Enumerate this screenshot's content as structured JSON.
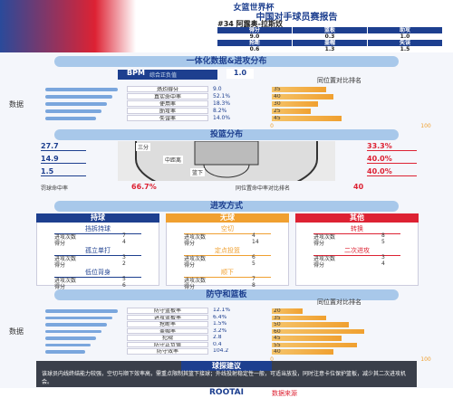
{
  "header": {
    "event": "女篮世界杯",
    "title": "中国对手球员赛报告",
    "player": "#34 阿露奥-拉斯奴",
    "info": [
      "身高：185cm",
      "位置：中锋",
      "时间：23.0分钟"
    ],
    "stats": [
      [
        "得分",
        "篮板",
        "助攻"
      ],
      [
        "9.0",
        "0.3",
        "1.0"
      ],
      [
        "抢断",
        "盖帽",
        "失误"
      ],
      [
        "0.6",
        "1.3",
        "1.5"
      ]
    ]
  },
  "overview": {
    "title": "一体化数据&进攻分布",
    "bpm_label": "BPM",
    "bpm_note": "综合正负值",
    "bpm": "1.0",
    "left_title": "数据",
    "right_title": "同位置对比排名",
    "rows": [
      {
        "label": "场均得分",
        "value": "9.0",
        "rank": 35
      },
      {
        "label": "真实命中率",
        "value": "52.1%",
        "rank": 40
      },
      {
        "label": "使用率",
        "value": "18.3%",
        "rank": 30
      },
      {
        "label": "助攻率",
        "value": "8.2%",
        "rank": 25
      },
      {
        "label": "失误率",
        "value": "14.0%",
        "rank": 45
      }
    ],
    "ticks": [
      0,
      100
    ]
  },
  "shooting": {
    "title": "投篮分布",
    "zones": [
      {
        "name": "三分",
        "freq": "27.7",
        "fg": "33.3%"
      },
      {
        "name": "中距离",
        "freq": "14.9",
        "fg": "40.0%"
      },
      {
        "name": "篮下",
        "freq": "1.5",
        "fg": "40.0%"
      }
    ],
    "summary": [
      {
        "label": "罚球命中率",
        "value": "66.7%"
      },
      {
        "label": "同位置命中率对比排名",
        "value": "40"
      }
    ]
  },
  "offense": {
    "title": "进攻方式",
    "columns": [
      {
        "name": "持球",
        "groups": [
          {
            "name": "挡拆持球",
            "items": [
              [
                "进攻次数",
                "7"
              ],
              [
                "得分",
                "4"
              ]
            ]
          },
          {
            "name": "孤立单打",
            "items": [
              [
                "进攻次数",
                "3"
              ],
              [
                "得分",
                "2"
              ]
            ]
          },
          {
            "name": "低位背身",
            "items": [
              [
                "进攻次数",
                "5"
              ],
              [
                "得分",
                "6"
              ]
            ]
          }
        ]
      },
      {
        "name": "无球",
        "groups": [
          {
            "name": "空切",
            "items": [
              [
                "进攻次数",
                "4"
              ],
              [
                "得分",
                "14"
              ]
            ]
          },
          {
            "name": "定点投篮",
            "items": [
              [
                "进攻次数",
                "6"
              ],
              [
                "得分",
                "5"
              ]
            ]
          },
          {
            "name": "顺下",
            "items": [
              [
                "进攻次数",
                "7"
              ],
              [
                "得分",
                "8"
              ]
            ]
          }
        ]
      },
      {
        "name": "其他",
        "groups": [
          {
            "name": "转换",
            "items": [
              [
                "进攻次数",
                "8"
              ],
              [
                "得分",
                "5"
              ]
            ]
          },
          {
            "name": "二次进攻",
            "items": [
              [
                "进攻次数",
                "3"
              ],
              [
                "得分",
                "4"
              ]
            ]
          }
        ]
      }
    ]
  },
  "defense": {
    "title": "防守和篮板",
    "left_title": "数据",
    "right_title": "同位置对比排名",
    "rows": [
      {
        "label": "防守篮板率",
        "value": "12.1%",
        "rank": 20
      },
      {
        "label": "进攻篮板率",
        "value": "6.4%",
        "rank": 35
      },
      {
        "label": "抢断率",
        "value": "1.5%",
        "rank": 50
      },
      {
        "label": "盖帽率",
        "value": "3.2%",
        "rank": 60
      },
      {
        "label": "犯规",
        "value": "2.8",
        "rank": 45
      },
      {
        "label": "防守正负值",
        "value": "0.4",
        "rank": 55
      },
      {
        "label": "防守效率",
        "value": "104.2",
        "rank": 40
      }
    ],
    "ticks": [
      0,
      100
    ]
  },
  "scouting": {
    "title": "球探建议",
    "text": "该球员内线终结能力较强，空切与顺下效率高，需重点限制其篮下接球；外线投射稳定性一般，可适当放投，同时注意卡位保护篮板，减少其二次进攻机会。"
  },
  "footer": {
    "brand": "ROOTAI",
    "tag": "数据来源"
  }
}
